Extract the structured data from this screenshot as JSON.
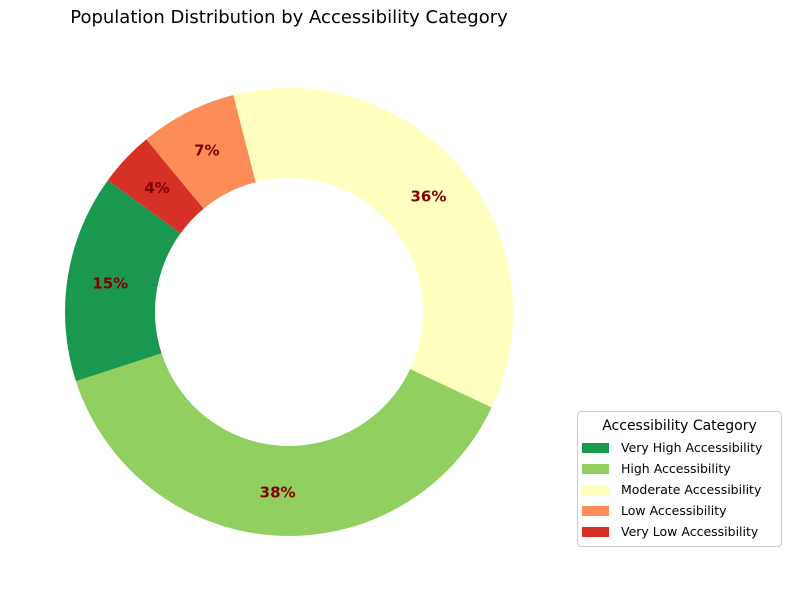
{
  "chart_data": {
    "type": "pie",
    "title": "Population Distribution by Accessibility Category",
    "legend_title": "Accessibility Category",
    "legend_placement": "lower-right",
    "donut": true,
    "slices": [
      {
        "label": "Very High Accessibility",
        "value": 15,
        "display": "15%",
        "color": "#1a9850"
      },
      {
        "label": "High Accessibility",
        "value": 38,
        "display": "38%",
        "color": "#91cf60"
      },
      {
        "label": "Moderate Accessibility",
        "value": 36,
        "display": "36%",
        "color": "#ffffbf"
      },
      {
        "label": "Low Accessibility",
        "value": 7,
        "display": "7%",
        "color": "#fc8d59"
      },
      {
        "label": "Very Low Accessibility",
        "value": 4,
        "display": "4%",
        "color": "#d73027"
      }
    ],
    "label_color": "#800000"
  }
}
